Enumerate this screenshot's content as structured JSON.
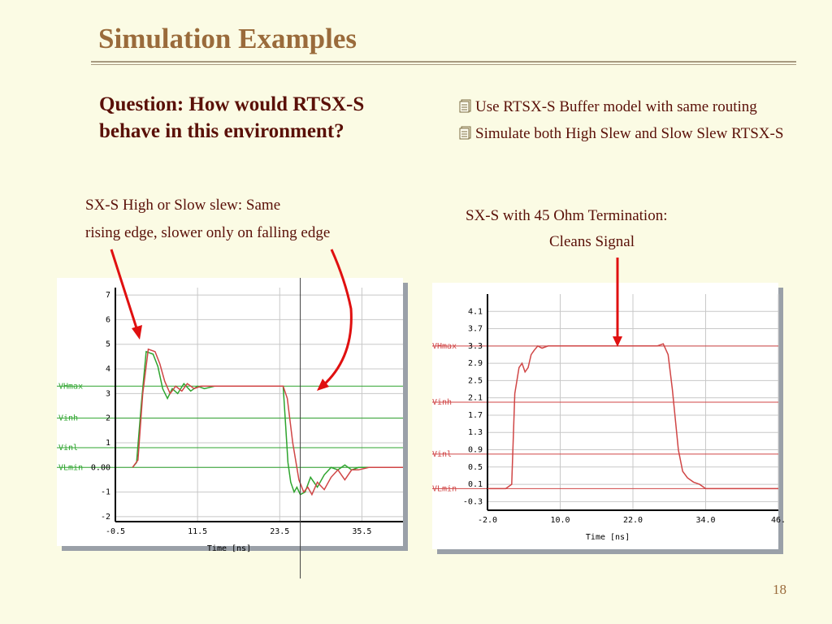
{
  "slide": {
    "title": "Simulation Examples",
    "question": "Question: How would RTSX-S behave in this environment?",
    "bullets": [
      "Use RTSX-S Buffer model with same routing",
      "Simulate both High Slew and Slow Slew RTSX-S"
    ],
    "caption_left_line1": "SX-S High or Slow slew: Same",
    "caption_left_line2": "rising edge, slower only on falling edge",
    "caption_right_line1": "SX-S with 45 Ohm Termination:",
    "caption_right_line2": "Cleans Signal",
    "page_number": "18",
    "colors": {
      "title": "#9a6b3b",
      "text": "#5a1008",
      "arrow": "#e01010",
      "background": "#fbfbe4"
    }
  },
  "chart_data": [
    {
      "type": "line",
      "title": "",
      "xlabel": "Time [ns]",
      "ylabel": "",
      "xlim": [
        -0.5,
        41.5
      ],
      "ylim": [
        -2.2,
        7.3
      ],
      "xticks": [
        -0.5,
        11.5,
        23.5,
        35.5
      ],
      "xtick_labels": [
        "-0.5",
        "11.5",
        "23.5",
        "35.5"
      ],
      "yticks": [
        7,
        6,
        5,
        4,
        3,
        2,
        1,
        0,
        -1,
        -2
      ],
      "ytick_labels": [
        "7",
        "6",
        "5",
        "4",
        "3",
        "2",
        "1",
        "0.00",
        "-1",
        "-2"
      ],
      "ref_lines": [
        {
          "label": "VHmax",
          "value": 3.3,
          "color": "#2ea42e"
        },
        {
          "label": "Vinh",
          "value": 2.0,
          "color": "#2ea42e"
        },
        {
          "label": "Vinl",
          "value": 0.8,
          "color": "#2ea42e"
        },
        {
          "label": "VLmin",
          "value": 0.0,
          "color": "#2ea42e"
        }
      ],
      "series": [
        {
          "color": "#2ea42e",
          "x": [
            2.0,
            2.6,
            3.3,
            4.0,
            5.0,
            5.7,
            6.4,
            7.1,
            7.8,
            8.6,
            9.5,
            10.5,
            11.5,
            12.5,
            14.0,
            16.0,
            18.0,
            20.0,
            22.0,
            23.5,
            24.0,
            24.3,
            24.7,
            25.1,
            25.6,
            26.0,
            26.5,
            27.2,
            28.0,
            29.0,
            30.0,
            31.0,
            32.0,
            33.0,
            34.0,
            35.0,
            36.0,
            38.0,
            40.0,
            41.5
          ],
          "y": [
            0.0,
            0.2,
            2.6,
            4.7,
            4.6,
            4.1,
            3.2,
            2.8,
            3.2,
            3.0,
            3.4,
            3.1,
            3.3,
            3.2,
            3.3,
            3.3,
            3.3,
            3.3,
            3.3,
            3.3,
            3.3,
            2.0,
            0.2,
            -0.6,
            -1.0,
            -0.8,
            -1.1,
            -1.0,
            -0.4,
            -0.8,
            -0.3,
            0.0,
            -0.1,
            0.1,
            -0.1,
            0.0,
            0.0,
            0.0,
            0.0,
            0.0
          ]
        },
        {
          "color": "#d04646",
          "x": [
            2.0,
            2.8,
            3.5,
            4.3,
            5.3,
            6.0,
            6.7,
            7.5,
            8.3,
            9.2,
            10.0,
            11.0,
            12.0,
            13.5,
            15.0,
            17.0,
            19.0,
            21.0,
            23.5,
            24.0,
            24.6,
            25.4,
            26.3,
            27.0,
            27.6,
            28.2,
            29.0,
            30.0,
            31.0,
            32.0,
            33.0,
            34.0,
            35.0,
            36.5,
            38.0,
            40.0,
            41.5
          ],
          "y": [
            0.0,
            0.3,
            3.0,
            4.8,
            4.7,
            4.2,
            3.5,
            3.0,
            3.3,
            3.1,
            3.4,
            3.2,
            3.3,
            3.3,
            3.3,
            3.3,
            3.3,
            3.3,
            3.3,
            3.3,
            2.8,
            1.0,
            -0.5,
            -1.0,
            -0.8,
            -1.1,
            -0.6,
            -0.9,
            -0.4,
            -0.1,
            -0.5,
            -0.1,
            -0.1,
            0.0,
            0.0,
            0.0,
            0.0
          ]
        }
      ]
    },
    {
      "type": "line",
      "title": "",
      "xlabel": "Time [ns]",
      "ylabel": "",
      "xlim": [
        -2.0,
        46.0
      ],
      "ylim": [
        -0.5,
        4.5
      ],
      "xticks": [
        -2.0,
        10.0,
        22.0,
        34.0,
        46.0
      ],
      "xtick_labels": [
        "-2.0",
        "10.0",
        "22.0",
        "34.0",
        "46."
      ],
      "yticks": [
        4.1,
        3.7,
        3.3,
        2.9,
        2.5,
        2.1,
        1.7,
        1.3,
        0.9,
        0.5,
        0.1,
        -0.3
      ],
      "ytick_labels": [
        "4.1",
        "3.7",
        "3.3",
        "2.9",
        "2.5",
        "2.1",
        "1.7",
        "1.3",
        "0.9",
        "0.5",
        "0.1",
        "-0.3"
      ],
      "ref_lines": [
        {
          "label": "VHmax",
          "value": 3.3,
          "color": "#d04646"
        },
        {
          "label": "Vinh",
          "value": 2.0,
          "color": "#d04646"
        },
        {
          "label": "Vinl",
          "value": 0.8,
          "color": "#d04646"
        },
        {
          "label": "VLmin",
          "value": 0.0,
          "color": "#d04646"
        }
      ],
      "series": [
        {
          "color": "#d04646",
          "x": [
            -2.0,
            0.0,
            1.0,
            2.0,
            2.5,
            3.2,
            3.7,
            4.2,
            4.7,
            5.2,
            5.7,
            6.3,
            7.0,
            8.0,
            9.0,
            10.0,
            12.0,
            16.0,
            20.0,
            24.0,
            26.0,
            27.0,
            27.8,
            28.5,
            29.5,
            30.2,
            31.0,
            32.0,
            33.0,
            34.0,
            36.0,
            40.0,
            44.0,
            46.0
          ],
          "y": [
            0.0,
            0.0,
            0.0,
            0.1,
            2.2,
            2.8,
            2.9,
            2.7,
            2.8,
            3.1,
            3.2,
            3.3,
            3.25,
            3.3,
            3.3,
            3.3,
            3.3,
            3.3,
            3.3,
            3.3,
            3.3,
            3.35,
            3.1,
            2.3,
            0.9,
            0.4,
            0.25,
            0.15,
            0.1,
            0.0,
            0.0,
            0.0,
            0.0,
            0.0
          ]
        }
      ]
    }
  ]
}
